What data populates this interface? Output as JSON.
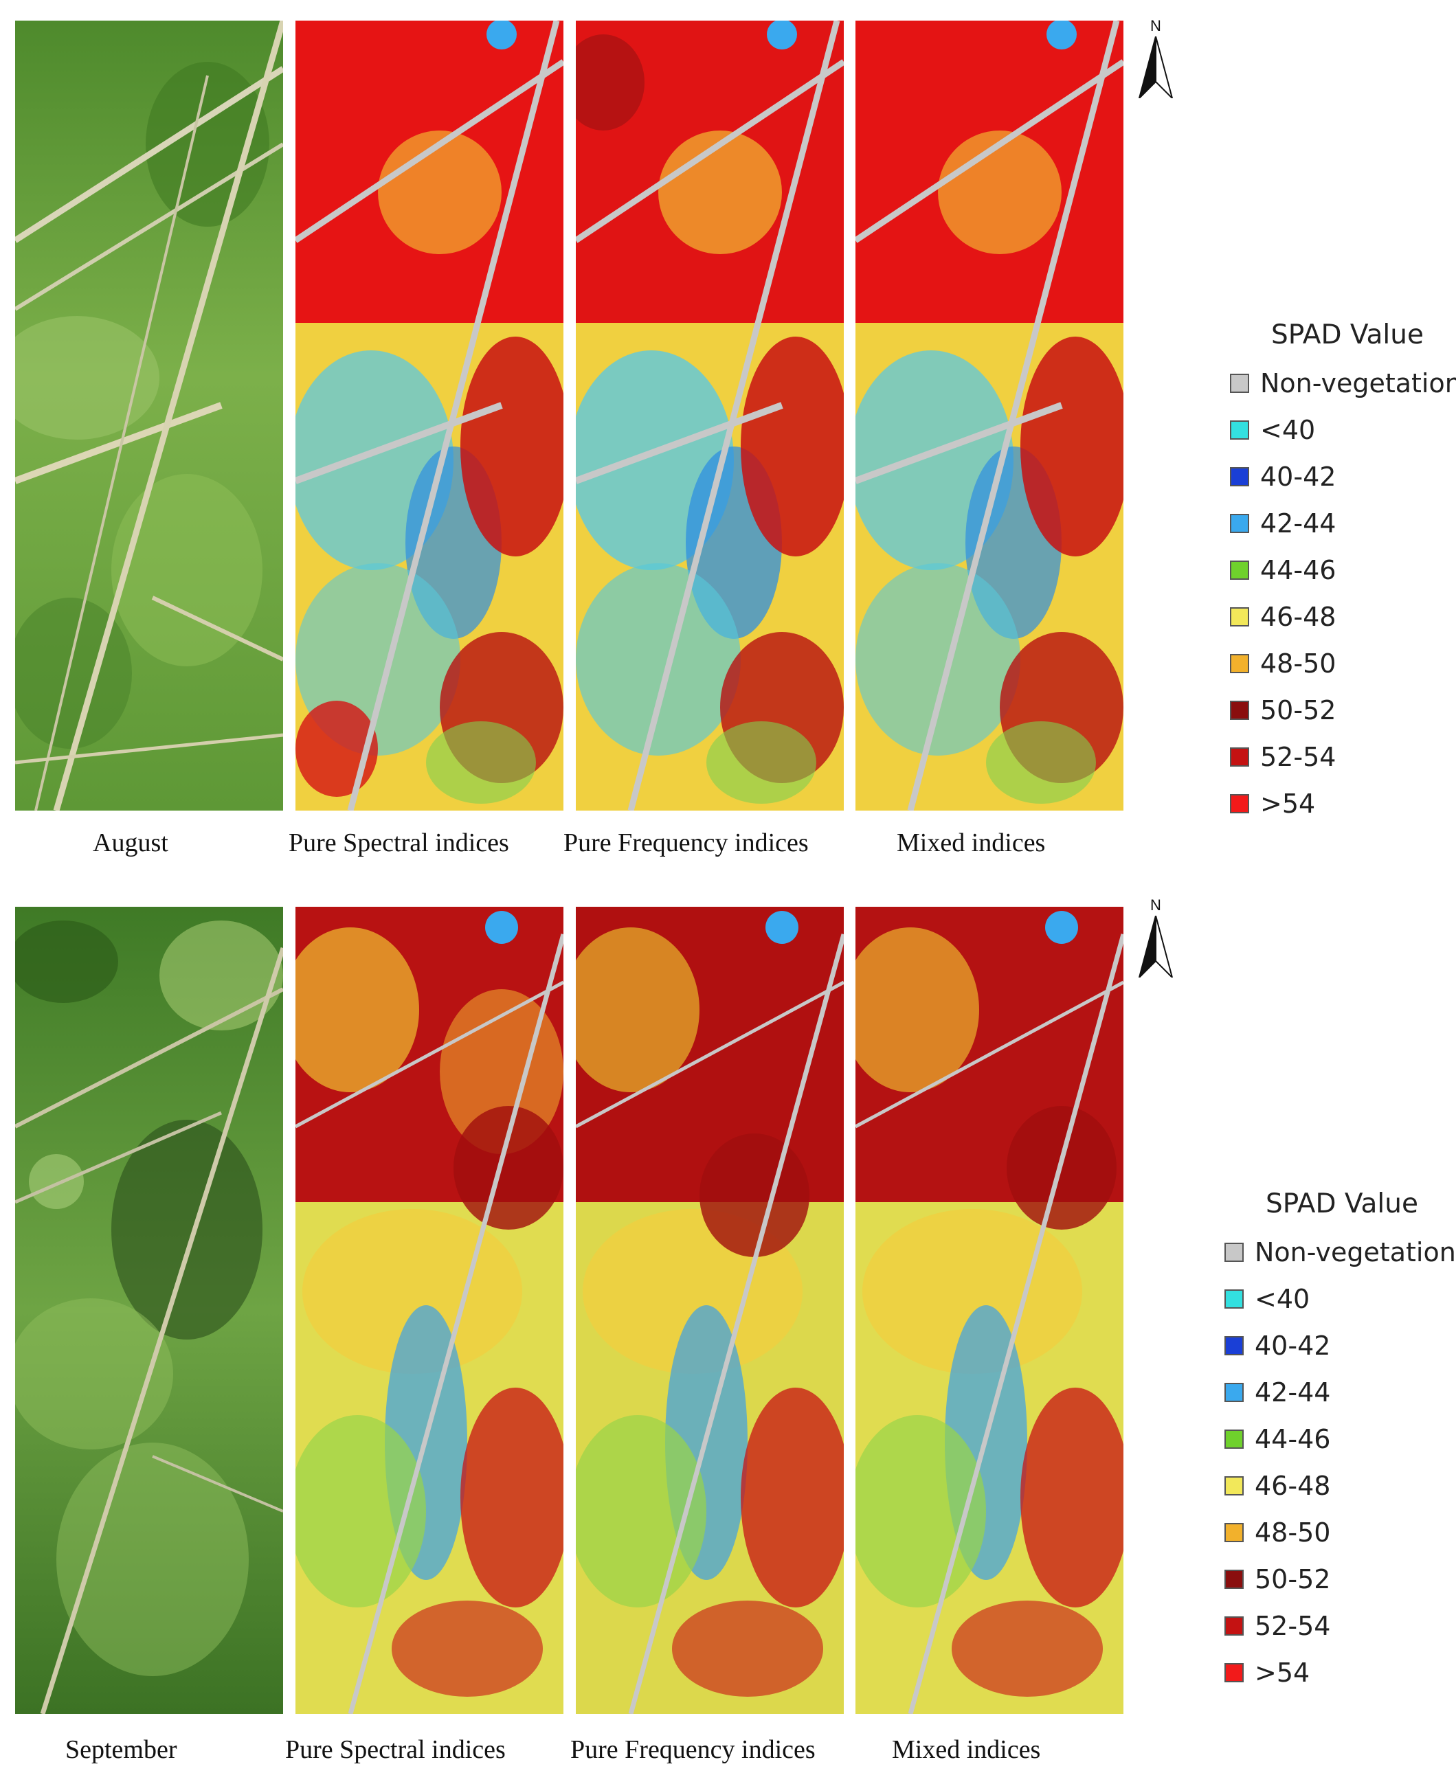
{
  "rows": [
    {
      "month": "August",
      "panels": [
        "Pure Spectral indices",
        "Pure Frequency indices",
        "Mixed indices"
      ],
      "north_label": "N",
      "legend": {
        "title": "SPAD Value",
        "items": [
          {
            "label": "Non-vegetation",
            "color": "#c8c8c8"
          },
          {
            "label": "<40",
            "color": "#33e0e0"
          },
          {
            "label": "40-42",
            "color": "#1a3fd6"
          },
          {
            "label": "42-44",
            "color": "#3aa9ee"
          },
          {
            "label": "44-46",
            "color": "#6fd12c"
          },
          {
            "label": "46-48",
            "color": "#f2e85a"
          },
          {
            "label": "48-50",
            "color": "#f2b12c"
          },
          {
            "label": "50-52",
            "color": "#8a0e0e"
          },
          {
            "label": "52-54",
            "color": "#c41212"
          },
          {
            "label": ">54",
            "color": "#f21a1a"
          }
        ]
      }
    },
    {
      "month": "September",
      "panels": [
        "Pure Spectral indices",
        "Pure Frequency indices",
        "Mixed indices"
      ],
      "north_label": "N",
      "legend": {
        "title": "SPAD Value",
        "items": [
          {
            "label": "Non-vegetation",
            "color": "#c8c8c8"
          },
          {
            "label": "<40",
            "color": "#33e0e0"
          },
          {
            "label": "40-42",
            "color": "#1a3fd6"
          },
          {
            "label": "42-44",
            "color": "#3aa9ee"
          },
          {
            "label": "44-46",
            "color": "#6fd12c"
          },
          {
            "label": "46-48",
            "color": "#f2e85a"
          },
          {
            "label": "48-50",
            "color": "#f2b12c"
          },
          {
            "label": "50-52",
            "color": "#8a0e0e"
          },
          {
            "label": "52-54",
            "color": "#c41212"
          },
          {
            "label": ">54",
            "color": "#f21a1a"
          }
        ]
      }
    }
  ]
}
